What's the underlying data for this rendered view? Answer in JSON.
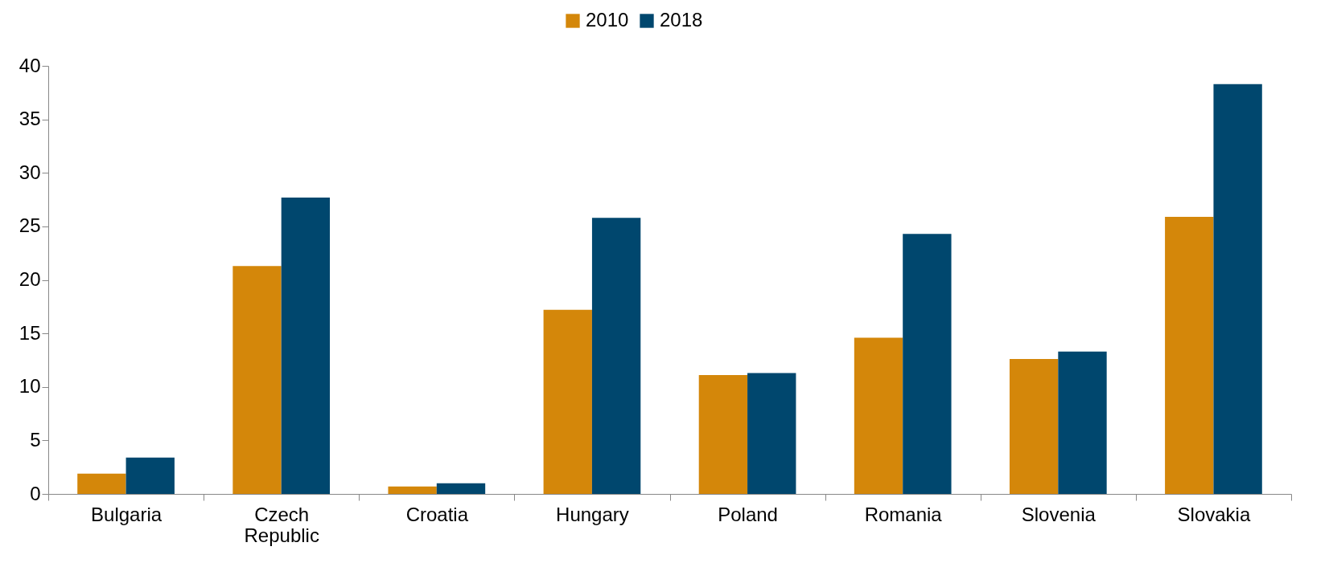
{
  "chart_data": {
    "type": "bar",
    "categories": [
      "Bulgaria",
      "Czech Republic",
      "Croatia",
      "Hungary",
      "Poland",
      "Romania",
      "Slovenia",
      "Slovakia"
    ],
    "series": [
      {
        "name": "2010",
        "color": "#d4870a",
        "values": [
          1.9,
          21.3,
          0.7,
          17.2,
          11.1,
          14.6,
          12.6,
          25.9
        ]
      },
      {
        "name": "2018",
        "color": "#00476e",
        "values": [
          3.4,
          27.7,
          1.0,
          25.8,
          11.3,
          24.3,
          13.3,
          38.3
        ]
      }
    ],
    "ylim": [
      0,
      40
    ],
    "yticks": [
      0,
      5,
      10,
      15,
      20,
      25,
      30,
      35,
      40
    ],
    "grid": false,
    "legend": "top"
  }
}
